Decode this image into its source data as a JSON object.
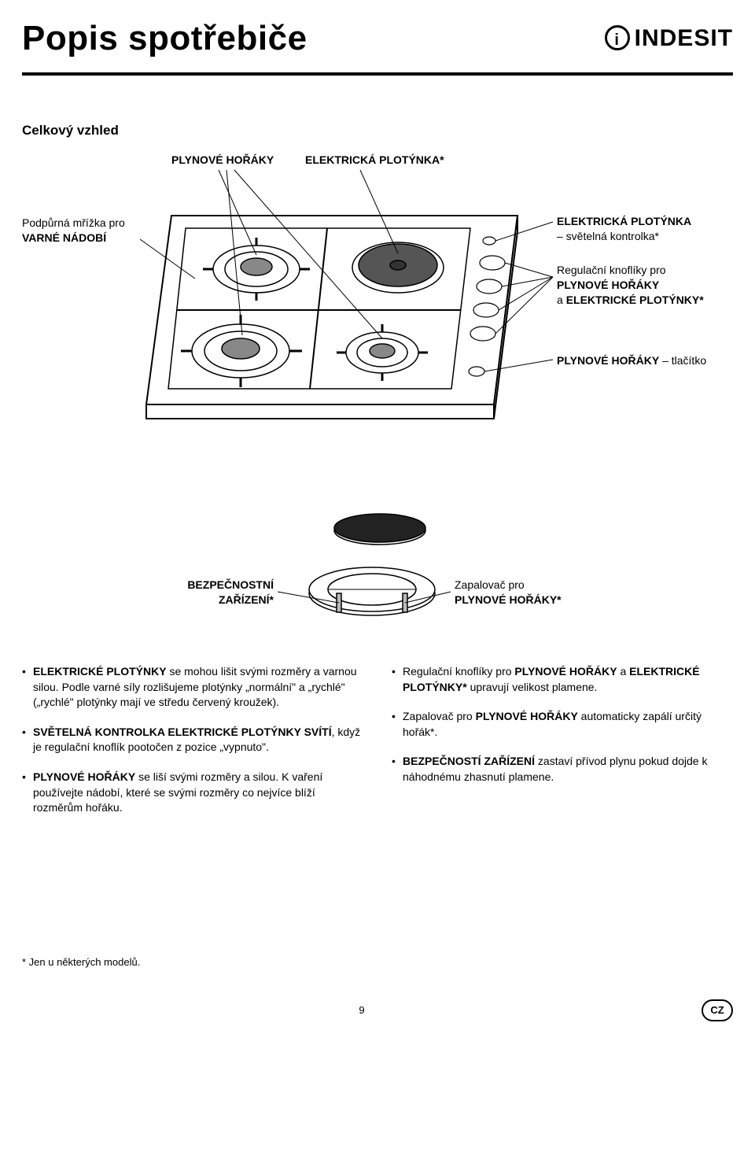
{
  "header": {
    "title": "Popis spotřebiče",
    "logo_text": "INDESIT"
  },
  "overview_label": "Celkový vzhled",
  "diagram1": {
    "label_burners": "PLYNOVÉ HOŘÁKY",
    "label_electric_plate": "ELEKTRICKÁ PLOTÝNKA*",
    "label_grid_pre": "Podpůrná mřížka pro",
    "label_grid_bold": "VARNÉ NÁDOBÍ",
    "label_indicator_bold": "ELEKTRICKÁ PLOTÝNKA",
    "label_indicator_post": "– světelná kontrolka*",
    "label_knobs_pre": "Regulační knoflíky pro",
    "label_knobs_bold1": "PLYNOVÉ HOŘÁKY",
    "label_knobs_mid": "a ",
    "label_knobs_bold2": "ELEKTRICKÉ PLOTÝNKY*",
    "label_button_bold": "PLYNOVÉ HOŘÁKY",
    "label_button_post": " – tlačítko"
  },
  "diagram2": {
    "label_safety_bold": "BEZPEČNOSTNÍ ZAŘÍZENÍ*",
    "label_igniter_pre": "Zapalovač pro",
    "label_igniter_bold": "PLYNOVÉ HOŘÁKY*"
  },
  "bullets_left": [
    {
      "parts": [
        {
          "b": true,
          "t": "ELEKTRICKÉ PLOTÝNKY"
        },
        {
          "b": false,
          "t": " se mohou lišit svými rozměry a varnou silou. Podle varné síly rozlišujeme plotýnky „normální\" a „rychlé\" („rychlé\" plotýnky mají ve středu červený kroužek)."
        }
      ]
    },
    {
      "parts": [
        {
          "b": true,
          "t": "SVĚTELNÁ KONTROLKA ELEKTRICKÉ PLOTÝNKY SVÍTÍ"
        },
        {
          "b": false,
          "t": ", když je regulační knoflík pootočen z pozice „vypnuto\"."
        }
      ]
    },
    {
      "parts": [
        {
          "b": true,
          "t": "PLYNOVÉ HOŘÁKY"
        },
        {
          "b": false,
          "t": " se liší svými rozměry a silou. K vaření používejte nádobí, které se svými rozměry co nejvíce blíží rozměrům hořáku."
        }
      ]
    }
  ],
  "bullets_right": [
    {
      "parts": [
        {
          "b": false,
          "t": "Regulační knoflíky pro "
        },
        {
          "b": true,
          "t": "PLYNOVÉ HOŘÁKY"
        },
        {
          "b": false,
          "t": " a "
        },
        {
          "b": true,
          "t": "ELEKTRICKÉ PLOTÝNKY*"
        },
        {
          "b": false,
          "t": " upravují velikost plamene."
        }
      ]
    },
    {
      "parts": [
        {
          "b": false,
          "t": "Zapalovač pro "
        },
        {
          "b": true,
          "t": "PLYNOVÉ HOŘÁKY"
        },
        {
          "b": false,
          "t": " automaticky zapálí určitý hořák*."
        }
      ]
    },
    {
      "parts": [
        {
          "b": true,
          "t": "BEZPEČNOSTÍ ZAŘÍZENÍ"
        },
        {
          "b": false,
          "t": " zastaví přívod plynu pokud dojde k náhodnému zhasnutí plamene."
        }
      ]
    }
  ],
  "footnote": "* Jen u některých modelů.",
  "page_number": "9",
  "lang": "CZ"
}
